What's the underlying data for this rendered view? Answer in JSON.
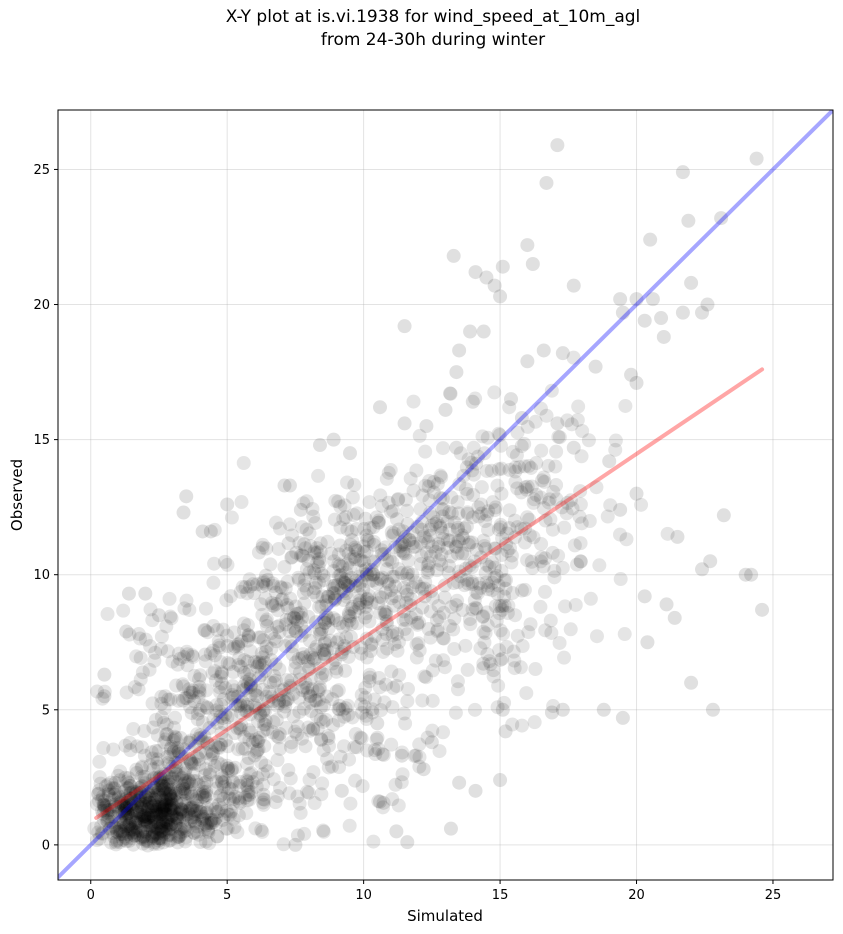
{
  "chart_data": {
    "type": "scatter",
    "title_lines": [
      "X-Y plot at is.vi.1938 for wind_speed_at_10m_agl",
      "from 24-30h during winter"
    ],
    "xlabel": "Simulated",
    "ylabel": "Observed",
    "xlim": [
      -1.2,
      27.2
    ],
    "ylim": [
      -1.3,
      27.2
    ],
    "x_ticks": [
      0,
      5,
      10,
      15,
      20,
      25
    ],
    "y_ticks": [
      0,
      5,
      10,
      15,
      20,
      25
    ],
    "grid": true,
    "marker_color": "#000000",
    "marker_alpha": 0.1,
    "point_count_estimate": 2000,
    "identity_line": {
      "color": "#0000ff",
      "alpha": 0.35,
      "from": [
        -1.2,
        -1.2
      ],
      "to": [
        27.2,
        27.2
      ]
    },
    "regression_line": {
      "color": "#ff0000",
      "alpha": 0.35,
      "from": [
        0.2,
        1.0
      ],
      "to": [
        24.6,
        17.6
      ]
    },
    "highlight_points": [
      [
        17.1,
        25.9
      ],
      [
        24.4,
        25.4
      ],
      [
        21.7,
        24.9
      ],
      [
        16.7,
        24.5
      ],
      [
        23.1,
        23.2
      ],
      [
        21.9,
        23.1
      ],
      [
        20.5,
        22.4
      ],
      [
        16.0,
        22.2
      ],
      [
        13.3,
        21.8
      ],
      [
        16.2,
        21.5
      ],
      [
        15.1,
        21.4
      ],
      [
        14.1,
        21.2
      ],
      [
        14.5,
        21.0
      ],
      [
        22.0,
        20.8
      ],
      [
        14.8,
        20.7
      ],
      [
        17.7,
        20.7
      ],
      [
        15.0,
        20.3
      ],
      [
        19.4,
        20.2
      ],
      [
        20.0,
        20.2
      ],
      [
        20.6,
        20.2
      ],
      [
        19.5,
        19.7
      ],
      [
        21.7,
        19.7
      ],
      [
        22.4,
        19.7
      ],
      [
        22.6,
        20.0
      ],
      [
        20.3,
        19.4
      ],
      [
        20.9,
        19.5
      ],
      [
        21.0,
        18.8
      ],
      [
        11.5,
        19.2
      ],
      [
        14.4,
        19.0
      ],
      [
        13.9,
        19.0
      ],
      [
        17.3,
        18.2
      ],
      [
        16.6,
        18.3
      ],
      [
        16.0,
        17.9
      ],
      [
        19.8,
        17.4
      ],
      [
        18.5,
        17.7
      ],
      [
        20.0,
        17.1
      ],
      [
        13.5,
        18.3
      ],
      [
        13.4,
        17.5
      ],
      [
        10.6,
        16.2
      ],
      [
        14.0,
        16.4
      ],
      [
        15.4,
        16.5
      ],
      [
        13.0,
        16.1
      ],
      [
        15.8,
        15.8
      ],
      [
        12.3,
        15.5
      ],
      [
        11.5,
        15.6
      ],
      [
        8.4,
        14.8
      ],
      [
        8.9,
        15.0
      ],
      [
        9.5,
        14.5
      ],
      [
        13.4,
        14.7
      ],
      [
        17.1,
        15.6
      ],
      [
        17.7,
        14.7
      ],
      [
        19.0,
        14.2
      ],
      [
        20.0,
        13.0
      ],
      [
        19.4,
        12.4
      ],
      [
        21.5,
        11.4
      ],
      [
        23.2,
        12.2
      ],
      [
        22.7,
        10.5
      ],
      [
        22.4,
        10.2
      ],
      [
        24.0,
        10.0
      ],
      [
        24.2,
        10.0
      ],
      [
        24.6,
        8.7
      ],
      [
        21.4,
        8.4
      ],
      [
        21.1,
        8.9
      ],
      [
        22.0,
        6.0
      ],
      [
        22.8,
        5.0
      ],
      [
        20.4,
        7.5
      ],
      [
        20.3,
        9.2
      ],
      [
        19.5,
        4.7
      ],
      [
        18.8,
        5.0
      ],
      [
        17.3,
        5.0
      ],
      [
        16.9,
        4.9
      ],
      [
        15.1,
        5.0
      ],
      [
        15.2,
        4.2
      ],
      [
        15.0,
        2.4
      ],
      [
        14.1,
        2.0
      ],
      [
        13.5,
        2.3
      ],
      [
        13.2,
        0.6
      ],
      [
        11.6,
        0.1
      ],
      [
        7.5,
        0.0
      ],
      [
        3.4,
        12.3
      ],
      [
        3.5,
        12.9
      ],
      [
        4.1,
        11.6
      ],
      [
        4.4,
        11.6
      ],
      [
        5.0,
        12.6
      ],
      [
        7.3,
        13.3
      ],
      [
        7.1,
        13.3
      ],
      [
        7.7,
        12.4
      ],
      [
        0.5,
        6.3
      ],
      [
        0.5,
        5.5
      ],
      [
        1.3,
        7.9
      ],
      [
        2.0,
        9.3
      ],
      [
        2.5,
        8.5
      ],
      [
        1.4,
        9.3
      ],
      [
        10.5,
        4.5
      ],
      [
        9.2,
        2.0
      ],
      [
        11.4,
        3.3
      ],
      [
        12.5,
        3.8
      ],
      [
        12.2,
        2.8
      ],
      [
        10.6,
        1.6
      ],
      [
        11.2,
        0.5
      ]
    ]
  }
}
